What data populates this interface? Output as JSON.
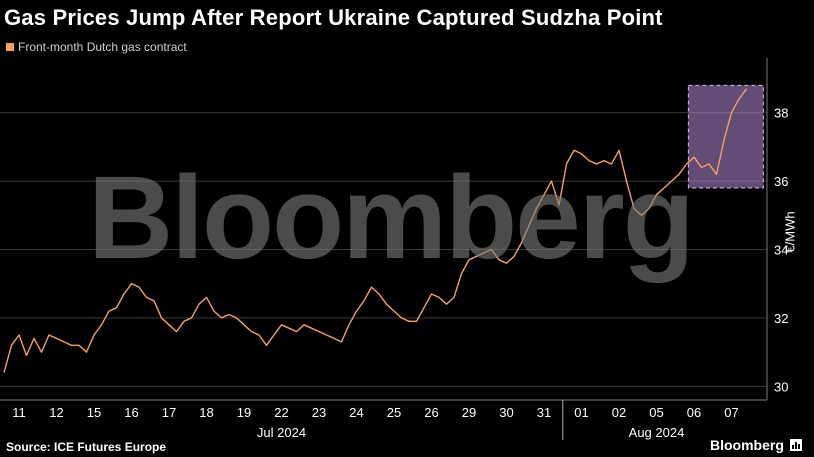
{
  "header": {
    "title": "Gas Prices Jump After Report Ukraine Captured Sudzha Point"
  },
  "footer": {
    "source": "Source: ICE Futures Europe",
    "brand": "Bloomberg"
  },
  "watermark": "Bloomberg",
  "colors": {
    "series": "#f4a261",
    "highlight": "#b58ad6",
    "grid": "#3a3a3a",
    "background": "#000000"
  },
  "chart_data": {
    "type": "line",
    "series": [
      {
        "name": "Front-month Dutch gas contract",
        "x": [
          "11",
          "12",
          "15",
          "16",
          "17",
          "18",
          "19",
          "22",
          "23",
          "24",
          "25",
          "26",
          "29",
          "30",
          "31",
          "01",
          "02",
          "05",
          "06",
          "07"
        ],
        "values": [
          [
            30.4,
            31.2,
            31.5,
            30.9,
            31.4
          ],
          [
            31.0,
            31.5,
            31.4,
            31.3,
            31.2
          ],
          [
            31.2,
            31.0,
            31.5,
            31.8,
            32.2
          ],
          [
            32.3,
            32.7,
            33.0,
            32.9,
            32.6
          ],
          [
            32.5,
            32.0,
            31.8,
            31.6,
            31.9
          ],
          [
            32.0,
            32.4,
            32.6,
            32.2,
            32.0
          ],
          [
            32.1,
            32.0,
            31.8,
            31.6,
            31.5
          ],
          [
            31.2,
            31.5,
            31.8,
            31.7,
            31.6
          ],
          [
            31.8,
            31.7,
            31.6,
            31.5,
            31.4
          ],
          [
            31.3,
            31.8,
            32.2,
            32.5,
            32.9
          ],
          [
            32.7,
            32.4,
            32.2,
            32.0,
            31.9
          ],
          [
            31.9,
            32.3,
            32.7,
            32.6,
            32.4
          ],
          [
            32.6,
            33.3,
            33.7,
            33.8,
            33.9
          ],
          [
            34.0,
            33.7,
            33.6,
            33.8,
            34.2
          ],
          [
            34.7,
            35.2,
            35.6,
            36.0,
            35.3
          ],
          [
            36.5,
            36.9,
            36.8,
            36.6,
            36.5
          ],
          [
            36.6,
            36.5,
            36.9,
            36.0,
            35.2
          ],
          [
            35.0,
            35.2,
            35.6,
            35.8,
            36.0
          ],
          [
            36.2,
            36.5,
            36.7,
            36.4,
            36.5
          ],
          [
            36.2,
            37.2,
            38.0,
            38.4,
            38.7
          ]
        ]
      }
    ],
    "xlabel_groups": [
      {
        "label": "Jul 2024",
        "from": 0,
        "to": 14
      },
      {
        "label": "Aug 2024",
        "from": 15,
        "to": 19
      }
    ],
    "ylabel": "€/MWh",
    "yticks": [
      30,
      32,
      34,
      36,
      38
    ],
    "ylim": [
      29.6,
      39.6
    ],
    "highlight": {
      "x_from": 17.85,
      "x_to": 19.85,
      "y_from": 35.8,
      "y_to": 38.8
    },
    "grid": true,
    "legend_position": "top-left"
  }
}
